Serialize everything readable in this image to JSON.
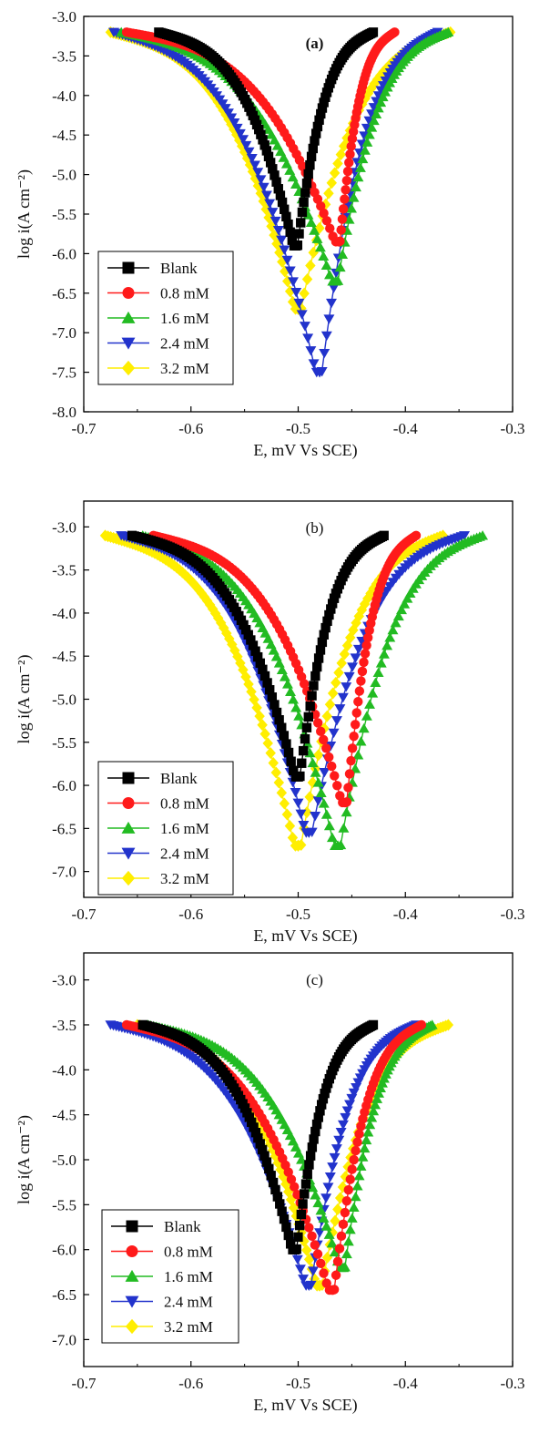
{
  "colors": {
    "Blank": "#000000",
    "0.8 mM": "#ff1a1a",
    "1.6 mM": "#22bb22",
    "2.4 mM": "#2233cc",
    "3.2 mM": "#ffee00"
  },
  "chart_data": [
    {
      "type": "line",
      "title": "(a)",
      "xlabel": "E, mV Vs SCE)",
      "ylabel": "log i(A cm⁻²)",
      "xlim": [
        -0.7,
        -0.3
      ],
      "ylim": [
        -8.0,
        -3.0
      ],
      "xticks": [
        "-0.7",
        "-0.6",
        "-0.5",
        "-0.4",
        "-0.3"
      ],
      "yticks": [
        "-3.0",
        "-3.5",
        "-4.0",
        "-4.5",
        "-5.0",
        "-5.5",
        "-6.0",
        "-6.5",
        "-7.0",
        "-7.5",
        "-8.0"
      ],
      "legend": [
        "Blank",
        "0.8 mM",
        "1.6 mM",
        "2.4 mM",
        "3.2 mM"
      ],
      "legend_position": "lower-left",
      "series": [
        {
          "name": "Blank",
          "marker": "square",
          "ecorr": -0.502,
          "min": -5.9,
          "cath_end": [
            -0.63,
            -3.2
          ],
          "anod_end": [
            -0.43,
            -3.2
          ]
        },
        {
          "name": "0.8 mM",
          "marker": "circle",
          "ecorr": -0.462,
          "min": -5.85,
          "cath_end": [
            -0.66,
            -3.2
          ],
          "anod_end": [
            -0.41,
            -3.2
          ]
        },
        {
          "name": "1.6 mM",
          "marker": "triangle-up",
          "ecorr": -0.465,
          "min": -6.35,
          "cath_end": [
            -0.665,
            -3.2
          ],
          "anod_end": [
            -0.36,
            -3.2
          ]
        },
        {
          "name": "2.4 mM",
          "marker": "triangle-down",
          "ecorr": -0.48,
          "min": -7.5,
          "cath_end": [
            -0.672,
            -3.2
          ],
          "anod_end": [
            -0.37,
            -3.2
          ]
        },
        {
          "name": "3.2 mM",
          "marker": "diamond",
          "ecorr": -0.5,
          "min": -6.7,
          "cath_end": [
            -0.675,
            -3.2
          ],
          "anod_end": [
            -0.358,
            -3.2
          ]
        }
      ]
    },
    {
      "type": "line",
      "title": "(b)",
      "xlabel": "E, mV Vs SCE)",
      "ylabel": "log i(A cm⁻²)",
      "xlim": [
        -0.7,
        -0.3
      ],
      "ylim": [
        -7.3,
        -2.7
      ],
      "xticks": [
        "-0.7",
        "-0.6",
        "-0.5",
        "-0.4",
        "-0.3"
      ],
      "yticks": [
        "-3.0",
        "-3.5",
        "-4.0",
        "-4.5",
        "-5.0",
        "-5.5",
        "-6.0",
        "-6.5",
        "-7.0"
      ],
      "legend": [
        "Blank",
        "0.8 mM",
        "1.6 mM",
        "2.4 mM",
        "3.2 mM"
      ],
      "legend_position": "lower-left",
      "series": [
        {
          "name": "Blank",
          "marker": "square",
          "ecorr": -0.5,
          "min": -5.9,
          "cath_end": [
            -0.655,
            -3.1
          ],
          "anod_end": [
            -0.42,
            -3.1
          ]
        },
        {
          "name": "0.8 mM",
          "marker": "circle",
          "ecorr": -0.456,
          "min": -6.2,
          "cath_end": [
            -0.635,
            -3.1
          ],
          "anod_end": [
            -0.39,
            -3.1
          ]
        },
        {
          "name": "1.6 mM",
          "marker": "triangle-up",
          "ecorr": -0.463,
          "min": -6.7,
          "cath_end": [
            -0.645,
            -3.1
          ],
          "anod_end": [
            -0.328,
            -3.1
          ]
        },
        {
          "name": "2.4 mM",
          "marker": "triangle-down",
          "ecorr": -0.49,
          "min": -6.55,
          "cath_end": [
            -0.665,
            -3.1
          ],
          "anod_end": [
            -0.345,
            -3.1
          ]
        },
        {
          "name": "3.2 mM",
          "marker": "diamond",
          "ecorr": -0.5,
          "min": -6.7,
          "cath_end": [
            -0.68,
            -3.1
          ],
          "anod_end": [
            -0.365,
            -3.1
          ]
        }
      ]
    },
    {
      "type": "line",
      "title": "(c)",
      "xlabel": "E, mV Vs SCE)",
      "ylabel": "log i(A cm⁻²)",
      "xlim": [
        -0.7,
        -0.3
      ],
      "ylim": [
        -7.3,
        -2.7
      ],
      "xticks": [
        "-0.7",
        "-0.6",
        "-0.5",
        "-0.4",
        "-0.3"
      ],
      "yticks": [
        "-3.0",
        "-3.5",
        "-4.0",
        "-4.5",
        "-5.0",
        "-5.5",
        "-6.0",
        "-6.5",
        "-7.0"
      ],
      "legend": [
        "Blank",
        "0.8 mM",
        "1.6 mM",
        "2.4 mM",
        "3.2 mM"
      ],
      "legend_position": "lower-left",
      "series": [
        {
          "name": "Blank",
          "marker": "square",
          "ecorr": -0.503,
          "min": -6.0,
          "cath_end": [
            -0.645,
            -3.5
          ],
          "anod_end": [
            -0.43,
            -3.5
          ]
        },
        {
          "name": "0.8 mM",
          "marker": "circle",
          "ecorr": -0.468,
          "min": -6.45,
          "cath_end": [
            -0.66,
            -3.5
          ],
          "anod_end": [
            -0.385,
            -3.5
          ]
        },
        {
          "name": "1.6 mM",
          "marker": "triangle-up",
          "ecorr": -0.458,
          "min": -6.2,
          "cath_end": [
            -0.64,
            -3.5
          ],
          "anod_end": [
            -0.375,
            -3.5
          ]
        },
        {
          "name": "2.4 mM",
          "marker": "triangle-down",
          "ecorr": -0.49,
          "min": -6.4,
          "cath_end": [
            -0.675,
            -3.5
          ],
          "anod_end": [
            -0.39,
            -3.5
          ]
        },
        {
          "name": "3.2 mM",
          "marker": "diamond",
          "ecorr": -0.48,
          "min": -6.4,
          "cath_end": [
            -0.65,
            -3.5
          ],
          "anod_end": [
            -0.36,
            -3.5
          ]
        }
      ]
    }
  ]
}
